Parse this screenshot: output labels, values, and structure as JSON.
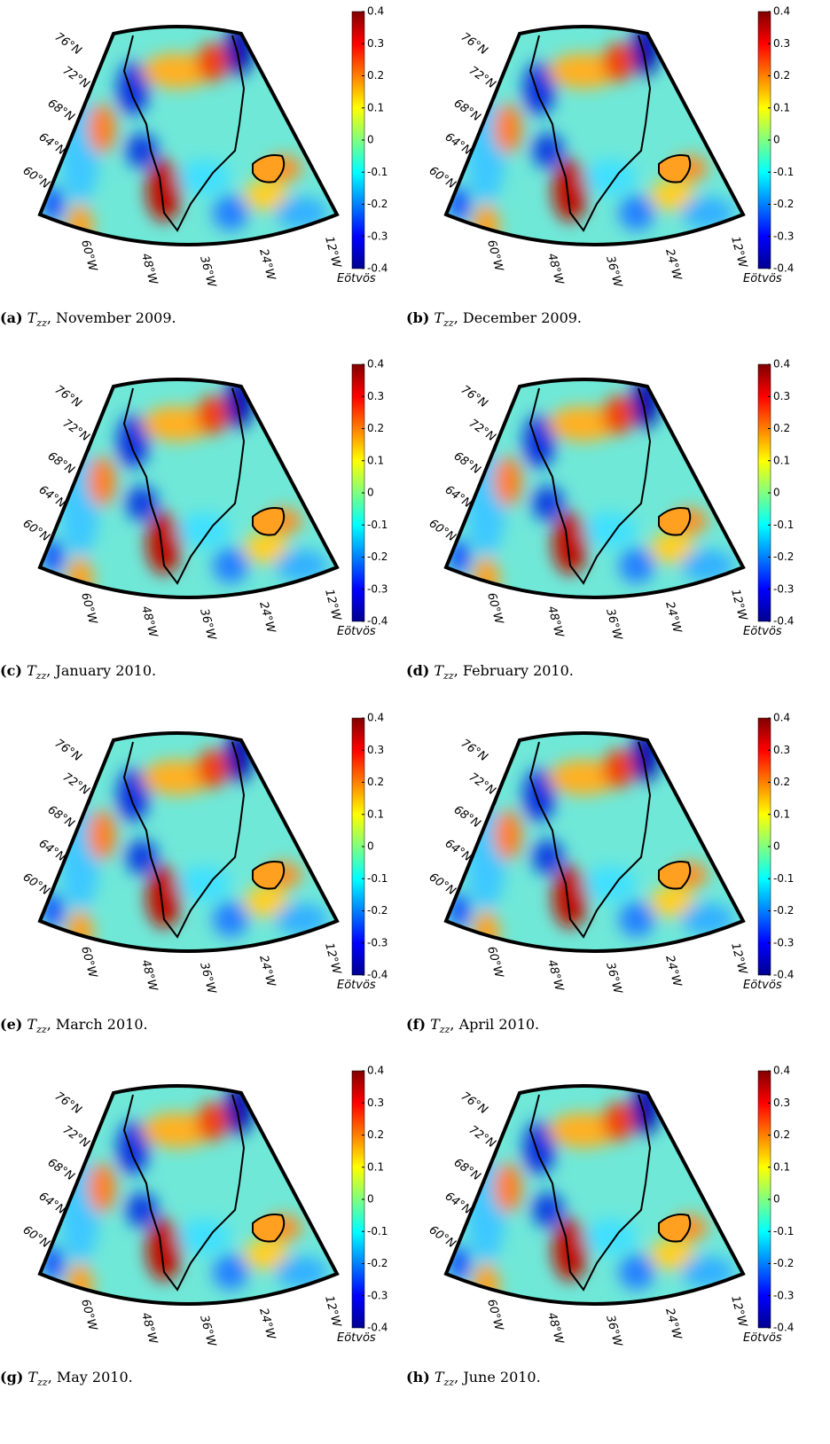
{
  "colorbar": {
    "ticks": [
      0.4,
      0.3,
      0.2,
      0.1,
      0,
      -0.1,
      -0.2,
      -0.3,
      -0.4
    ],
    "unit": "Eötvös"
  },
  "lat_labels": [
    "76°N",
    "72°N",
    "68°N",
    "64°N",
    "60°N"
  ],
  "lon_labels": [
    "60°W",
    "48°W",
    "36°W",
    "24°W",
    "12°W"
  ],
  "panels": [
    {
      "label": "(a)",
      "symbol": "T",
      "subscript": "zz",
      "caption": ", November 2009."
    },
    {
      "label": "(b)",
      "symbol": "T",
      "subscript": "zz",
      "caption": ", December 2009."
    },
    {
      "label": "(c)",
      "symbol": "T",
      "subscript": "zz",
      "caption": ", January 2010."
    },
    {
      "label": "(d)",
      "symbol": "T",
      "subscript": "zz",
      "caption": ", February 2010."
    },
    {
      "label": "(e)",
      "symbol": "T",
      "subscript": "zz",
      "caption": ", March 2010."
    },
    {
      "label": "(f)",
      "symbol": "T",
      "subscript": "zz",
      "caption": ", April 2010."
    },
    {
      "label": "(g)",
      "symbol": "T",
      "subscript": "zz",
      "caption": ", May 2010."
    },
    {
      "label": "(h)",
      "symbol": "T",
      "subscript": "zz",
      "caption": ", June 2010."
    }
  ]
}
